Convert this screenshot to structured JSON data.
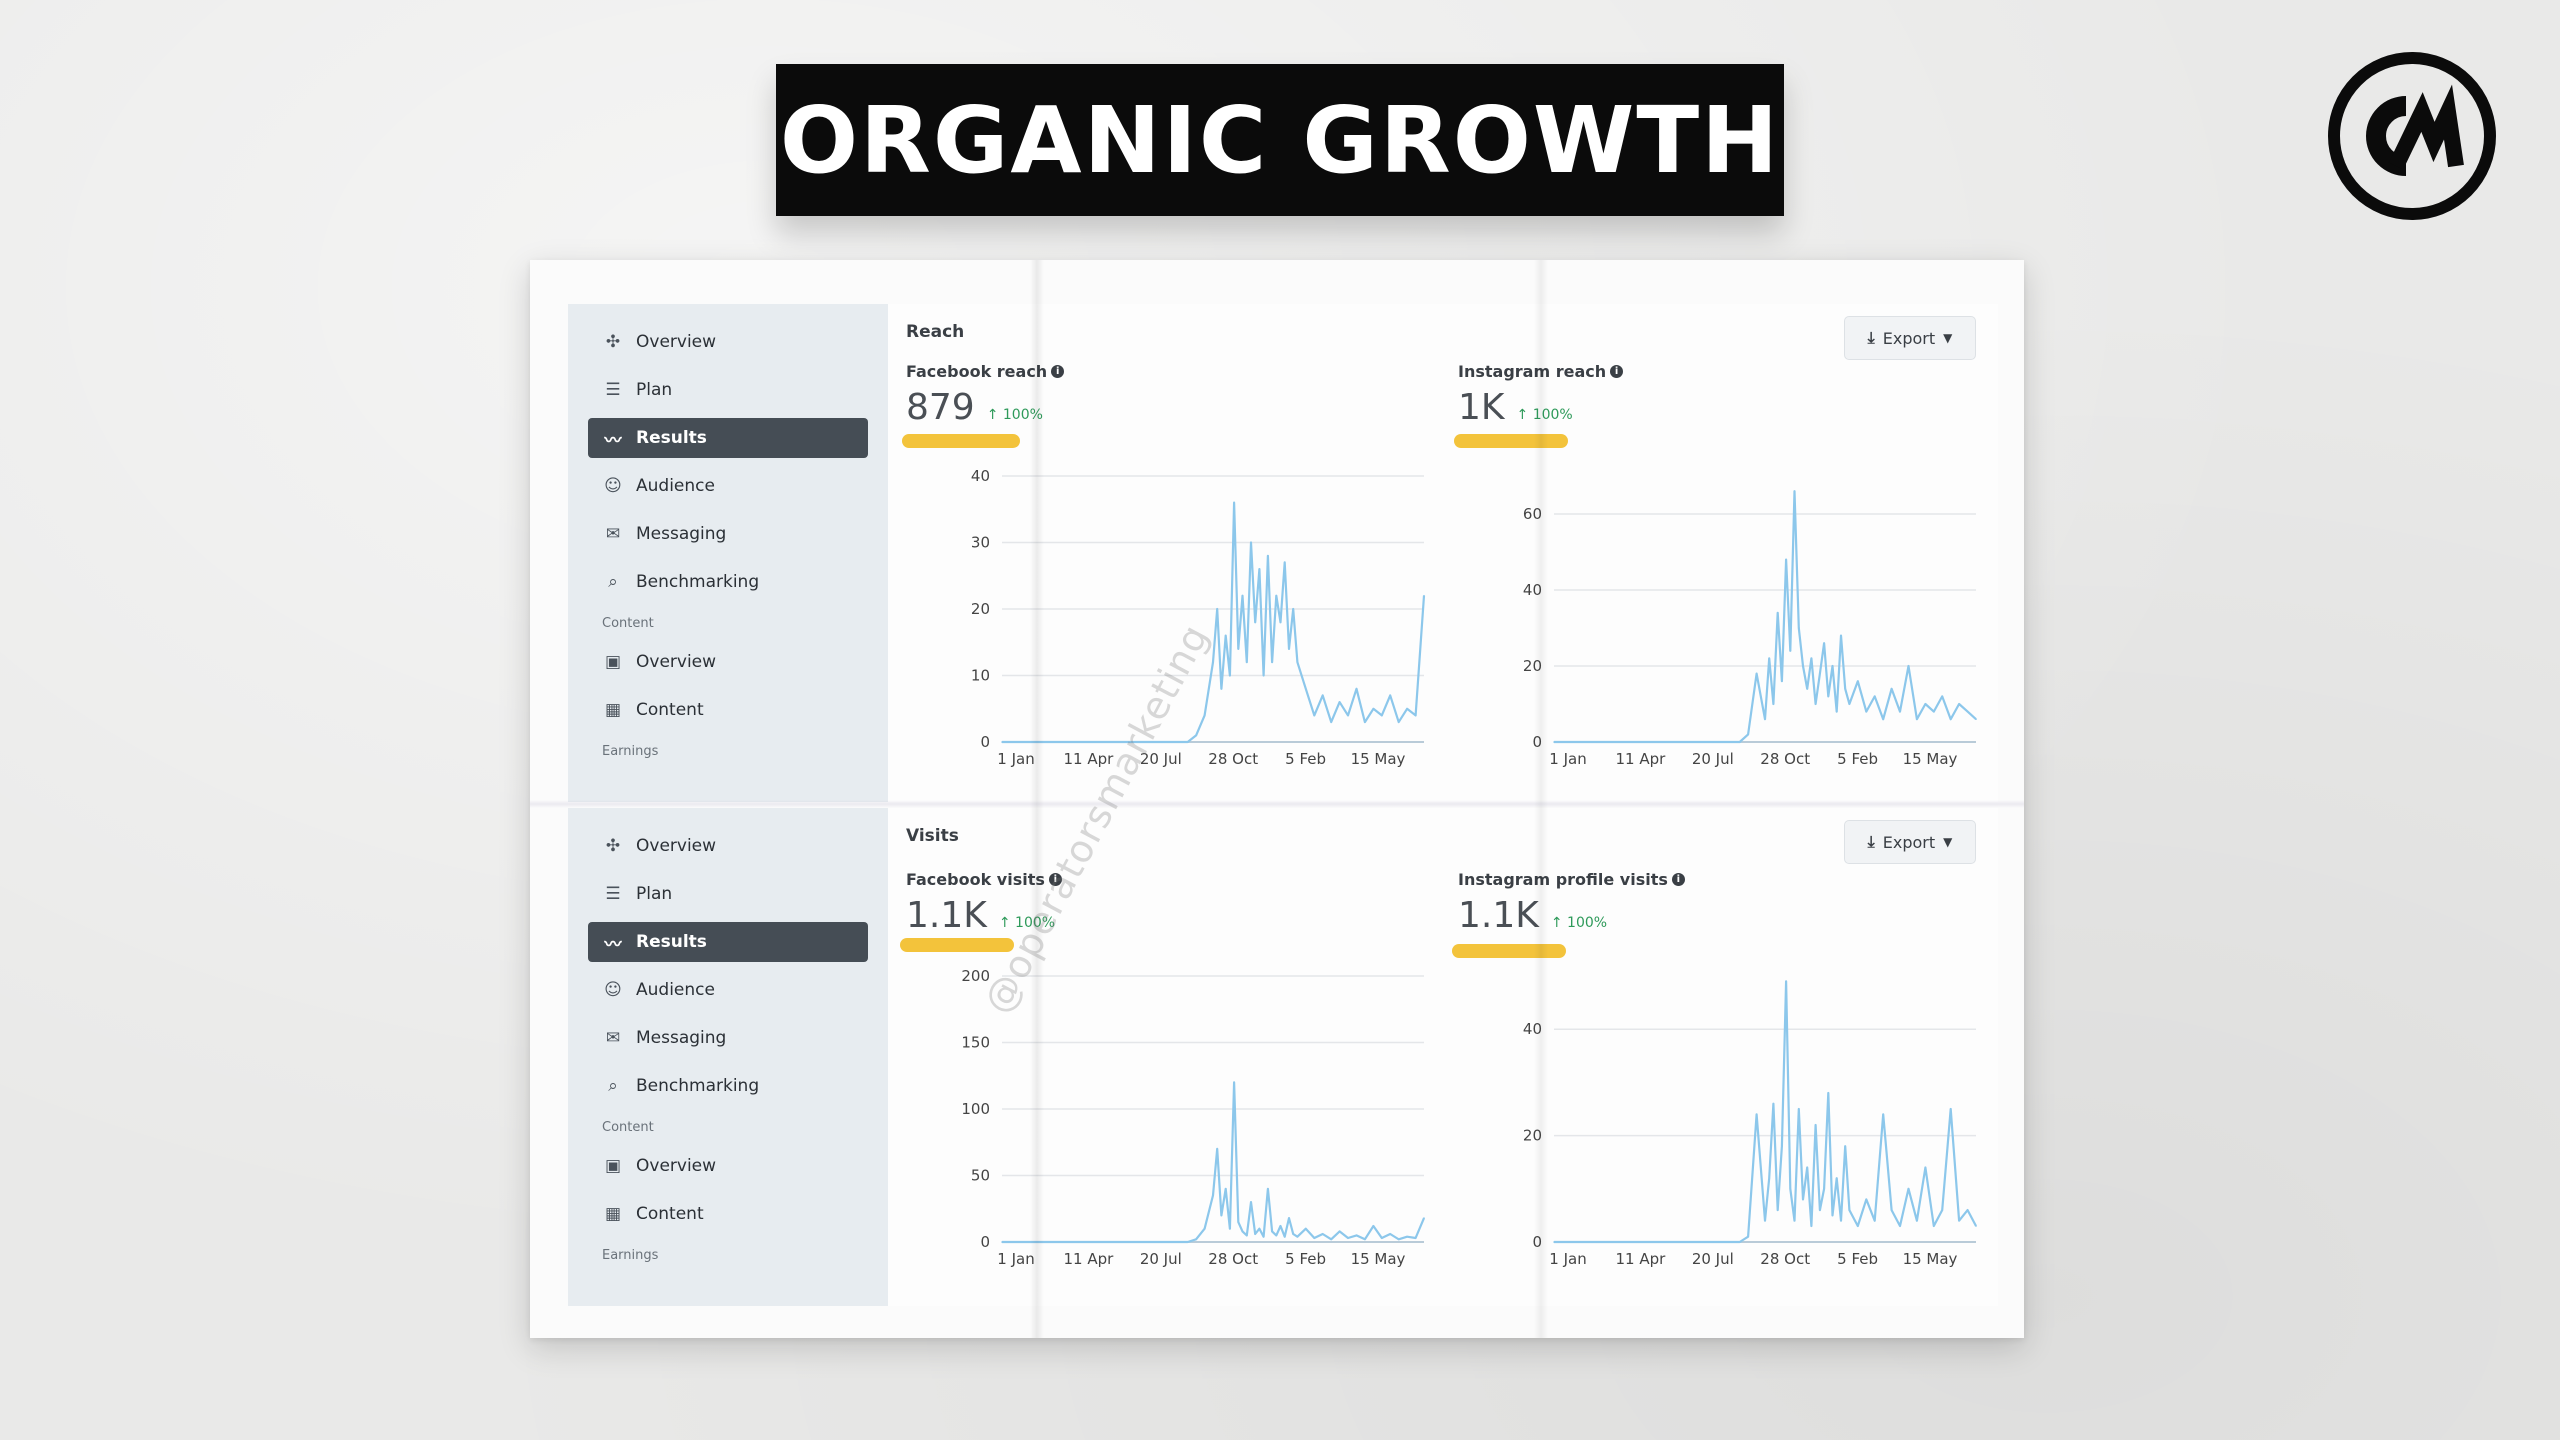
{
  "title": "ORGANIC GROWTH",
  "logo": {
    "icon": "cm-logo-icon"
  },
  "watermark": "@operatorsmarketing",
  "sidebar_panels": [
    {
      "items": [
        {
          "label": "Overview",
          "icon": "overview-icon"
        },
        {
          "label": "Plan",
          "icon": "plan-icon"
        },
        {
          "label": "Results",
          "icon": "results-icon",
          "active": true
        },
        {
          "label": "Audience",
          "icon": "audience-icon"
        },
        {
          "label": "Messaging",
          "icon": "messaging-icon"
        },
        {
          "label": "Benchmarking",
          "icon": "benchmarking-icon"
        }
      ],
      "content_section": "Content",
      "content_items": [
        {
          "label": "Overview",
          "icon": "content-overview-icon"
        },
        {
          "label": "Content",
          "icon": "content-table-icon"
        }
      ],
      "earnings_section": "Earnings"
    },
    {
      "items": [
        {
          "label": "Overview",
          "icon": "overview-icon"
        },
        {
          "label": "Plan",
          "icon": "plan-icon"
        },
        {
          "label": "Results",
          "icon": "results-icon",
          "active": true
        },
        {
          "label": "Audience",
          "icon": "audience-icon"
        },
        {
          "label": "Messaging",
          "icon": "messaging-icon"
        },
        {
          "label": "Benchmarking",
          "icon": "benchmarking-icon"
        }
      ],
      "content_section": "Content",
      "content_items": [
        {
          "label": "Overview",
          "icon": "content-overview-icon"
        },
        {
          "label": "Content",
          "icon": "content-table-icon"
        }
      ],
      "earnings_section": "Earnings"
    }
  ],
  "sections": [
    {
      "title": "Reach",
      "export_label": "Export",
      "metrics": [
        {
          "label": "Facebook reach",
          "value": "879",
          "change": "↑ 100%"
        },
        {
          "label": "Instagram reach",
          "value": "1K",
          "change": "↑ 100%"
        }
      ]
    },
    {
      "title": "Visits",
      "export_label": "Export",
      "metrics": [
        {
          "label": "Facebook visits",
          "value": "1.1K",
          "change": "↑ 100%"
        },
        {
          "label": "Instagram profile visits",
          "value": "1.1K",
          "change": "↑ 100%"
        }
      ]
    }
  ],
  "colors": {
    "series": "#8cc7eb",
    "highlight": "#f3c33b",
    "active_nav": "#454d55",
    "positive": "#2e9a5a"
  },
  "chart_data": [
    {
      "type": "line",
      "title": "Facebook reach",
      "categories": [
        "1 Jan",
        "11 Apr",
        "20 Jul",
        "28 Oct",
        "5 Feb",
        "15 May"
      ],
      "yticks": [
        0,
        10,
        20,
        30,
        40
      ],
      "ylim": [
        0,
        40
      ],
      "x": [
        0,
        10,
        20,
        30,
        38,
        40,
        42,
        44,
        46,
        48,
        50,
        51,
        52,
        53,
        54,
        55,
        56,
        57,
        58,
        59,
        60,
        61,
        62,
        63,
        64,
        65,
        66,
        67,
        68,
        69,
        70,
        72,
        74,
        76,
        78,
        80,
        82,
        84,
        86,
        88,
        90,
        92,
        94,
        96,
        98,
        100
      ],
      "values": [
        0,
        0,
        0,
        0,
        0,
        0,
        0,
        0,
        1,
        4,
        12,
        20,
        8,
        16,
        10,
        36,
        14,
        22,
        12,
        30,
        18,
        26,
        10,
        28,
        12,
        22,
        18,
        27,
        14,
        20,
        12,
        8,
        4,
        7,
        3,
        6,
        4,
        8,
        3,
        5,
        4,
        7,
        3,
        5,
        4,
        22
      ]
    },
    {
      "type": "line",
      "title": "Instagram reach",
      "categories": [
        "1 Jan",
        "11 Apr",
        "20 Jul",
        "28 Oct",
        "5 Feb",
        "15 May"
      ],
      "yticks": [
        0,
        20,
        40,
        60
      ],
      "ylim": [
        0,
        70
      ],
      "x": [
        0,
        10,
        20,
        30,
        38,
        40,
        42,
        44,
        46,
        48,
        50,
        51,
        52,
        53,
        54,
        55,
        56,
        57,
        58,
        59,
        60,
        61,
        62,
        63,
        64,
        65,
        66,
        67,
        68,
        69,
        70,
        72,
        74,
        76,
        78,
        80,
        82,
        84,
        86,
        88,
        90,
        92,
        94,
        96,
        98,
        100
      ],
      "values": [
        0,
        0,
        0,
        0,
        0,
        0,
        0,
        0,
        2,
        18,
        6,
        22,
        10,
        34,
        16,
        48,
        24,
        66,
        30,
        20,
        14,
        22,
        10,
        18,
        26,
        12,
        20,
        8,
        28,
        14,
        10,
        16,
        8,
        12,
        6,
        14,
        8,
        20,
        6,
        10,
        8,
        12,
        6,
        10,
        8,
        6
      ]
    },
    {
      "type": "line",
      "title": "Facebook visits",
      "categories": [
        "1 Jan",
        "11 Apr",
        "20 Jul",
        "28 Oct",
        "5 Feb",
        "15 May"
      ],
      "yticks": [
        0,
        50,
        100,
        150,
        200
      ],
      "ylim": [
        0,
        200
      ],
      "x": [
        0,
        10,
        20,
        30,
        38,
        40,
        42,
        44,
        46,
        48,
        50,
        51,
        52,
        53,
        54,
        55,
        56,
        57,
        58,
        59,
        60,
        61,
        62,
        63,
        64,
        65,
        66,
        67,
        68,
        69,
        70,
        72,
        74,
        76,
        78,
        80,
        82,
        84,
        86,
        88,
        90,
        92,
        94,
        96,
        98,
        100
      ],
      "values": [
        0,
        0,
        0,
        0,
        0,
        0,
        0,
        0,
        2,
        10,
        35,
        70,
        20,
        40,
        10,
        120,
        15,
        8,
        5,
        30,
        6,
        10,
        4,
        40,
        8,
        5,
        12,
        4,
        18,
        6,
        4,
        10,
        3,
        6,
        2,
        8,
        3,
        5,
        2,
        12,
        3,
        6,
        2,
        4,
        3,
        18
      ]
    },
    {
      "type": "line",
      "title": "Instagram profile visits",
      "categories": [
        "1 Jan",
        "11 Apr",
        "20 Jul",
        "28 Oct",
        "5 Feb",
        "15 May"
      ],
      "yticks": [
        0,
        20,
        40
      ],
      "ylim": [
        0,
        50
      ],
      "x": [
        0,
        10,
        20,
        30,
        38,
        40,
        42,
        44,
        46,
        48,
        50,
        51,
        52,
        53,
        54,
        55,
        56,
        57,
        58,
        59,
        60,
        61,
        62,
        63,
        64,
        65,
        66,
        67,
        68,
        69,
        70,
        72,
        74,
        76,
        78,
        80,
        82,
        84,
        86,
        88,
        90,
        92,
        94,
        96,
        98,
        100
      ],
      "values": [
        0,
        0,
        0,
        0,
        0,
        0,
        0,
        0,
        1,
        24,
        4,
        12,
        26,
        6,
        18,
        49,
        10,
        4,
        25,
        8,
        14,
        3,
        22,
        6,
        10,
        28,
        5,
        12,
        4,
        18,
        6,
        3,
        8,
        4,
        24,
        6,
        3,
        10,
        4,
        14,
        3,
        6,
        25,
        4,
        6,
        3
      ]
    }
  ]
}
